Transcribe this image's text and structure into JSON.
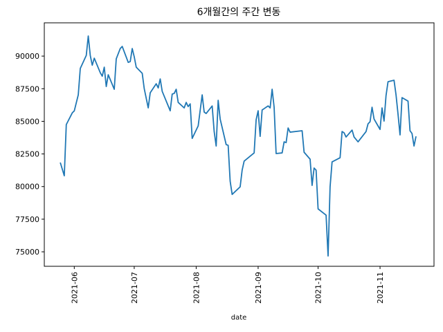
{
  "chart_data": {
    "type": "line",
    "title": "6개월간의 주간 변동",
    "xlabel": "date",
    "x": [
      "2021-05-25",
      "2021-05-27",
      "2021-05-28",
      "2021-05-31",
      "2021-06-01",
      "2021-06-03",
      "2021-06-04",
      "2021-06-07",
      "2021-06-08",
      "2021-06-09",
      "2021-06-10",
      "2021-06-11",
      "2021-06-14",
      "2021-06-15",
      "2021-06-16",
      "2021-06-17",
      "2021-06-18",
      "2021-06-21",
      "2021-06-22",
      "2021-06-24",
      "2021-06-25",
      "2021-06-28",
      "2021-06-29",
      "2021-06-30",
      "2021-07-01",
      "2021-07-02",
      "2021-07-05",
      "2021-07-06",
      "2021-07-08",
      "2021-07-09",
      "2021-07-12",
      "2021-07-13",
      "2021-07-14",
      "2021-07-15",
      "2021-07-19",
      "2021-07-20",
      "2021-07-21",
      "2021-07-22",
      "2021-07-23",
      "2021-07-26",
      "2021-07-27",
      "2021-07-28",
      "2021-07-29",
      "2021-07-30",
      "2021-08-02",
      "2021-08-04",
      "2021-08-05",
      "2021-08-06",
      "2021-08-09",
      "2021-08-10",
      "2021-08-11",
      "2021-08-12",
      "2021-08-13",
      "2021-08-16",
      "2021-08-17",
      "2021-08-18",
      "2021-08-19",
      "2021-08-23",
      "2021-08-24",
      "2021-08-25",
      "2021-08-30",
      "2021-08-31",
      "2021-09-01",
      "2021-09-02",
      "2021-09-03",
      "2021-09-06",
      "2021-09-07",
      "2021-09-08",
      "2021-09-09",
      "2021-09-10",
      "2021-09-13",
      "2021-09-14",
      "2021-09-15",
      "2021-09-16",
      "2021-09-17",
      "2021-09-23",
      "2021-09-24",
      "2021-09-27",
      "2021-09-28",
      "2021-09-29",
      "2021-09-30",
      "2021-10-01",
      "2021-10-05",
      "2021-10-06",
      "2021-10-07",
      "2021-10-08",
      "2021-10-12",
      "2021-10-13",
      "2021-10-14",
      "2021-10-15",
      "2021-10-18",
      "2021-10-19",
      "2021-10-21",
      "2021-10-25",
      "2021-10-26",
      "2021-10-27",
      "2021-10-28",
      "2021-10-29",
      "2021-11-01",
      "2021-11-02",
      "2021-11-03",
      "2021-11-04",
      "2021-11-05",
      "2021-11-08",
      "2021-11-09",
      "2021-11-10",
      "2021-11-11",
      "2021-11-12",
      "2021-11-15",
      "2021-11-16",
      "2021-11-17",
      "2021-11-18",
      "2021-11-19"
    ],
    "series": [
      {
        "color": "#1f77b4",
        "values": [
          81840,
          80830,
          84750,
          85650,
          85800,
          87030,
          89050,
          90050,
          91540,
          90050,
          89300,
          89840,
          88730,
          88460,
          89150,
          87670,
          88570,
          87460,
          89790,
          90580,
          90740,
          89520,
          89580,
          90580,
          89950,
          89150,
          88680,
          87510,
          86030,
          87190,
          87880,
          87560,
          88250,
          87300,
          85810,
          87090,
          87140,
          87460,
          86450,
          86030,
          86450,
          86130,
          86340,
          83690,
          84650,
          87030,
          85710,
          85600,
          86180,
          84220,
          83110,
          86610,
          85180,
          83220,
          83160,
          80410,
          79400,
          79980,
          81260,
          81950,
          82580,
          85120,
          85810,
          83850,
          85870,
          86180,
          86030,
          87460,
          86080,
          82530,
          82580,
          83430,
          83370,
          84490,
          84170,
          84280,
          82630,
          82100,
          80090,
          81420,
          81260,
          78290,
          77810,
          74680,
          79980,
          81890,
          82210,
          84220,
          84120,
          83800,
          84330,
          83800,
          83430,
          84220,
          84810,
          84970,
          86080,
          85180,
          84380,
          86030,
          85020,
          86980,
          88040,
          88150,
          87030,
          85550,
          83960,
          86820,
          86550,
          84280,
          84070,
          83110,
          83850
        ]
      }
    ],
    "xlim": [
      "2021-05-17",
      "2021-11-28"
    ],
    "xticks": [
      {
        "value": "2021-06-01",
        "label": "2021-06"
      },
      {
        "value": "2021-07-01",
        "label": "2021-07"
      },
      {
        "value": "2021-08-01",
        "label": "2021-08"
      },
      {
        "value": "2021-09-01",
        "label": "2021-09"
      },
      {
        "value": "2021-10-01",
        "label": "2021-10"
      },
      {
        "value": "2021-11-01",
        "label": "2021-11"
      }
    ],
    "ylim": [
      73890,
      92550
    ],
    "yticks": [
      75000,
      77500,
      80000,
      82500,
      85000,
      87500,
      90000
    ],
    "grid": false
  }
}
